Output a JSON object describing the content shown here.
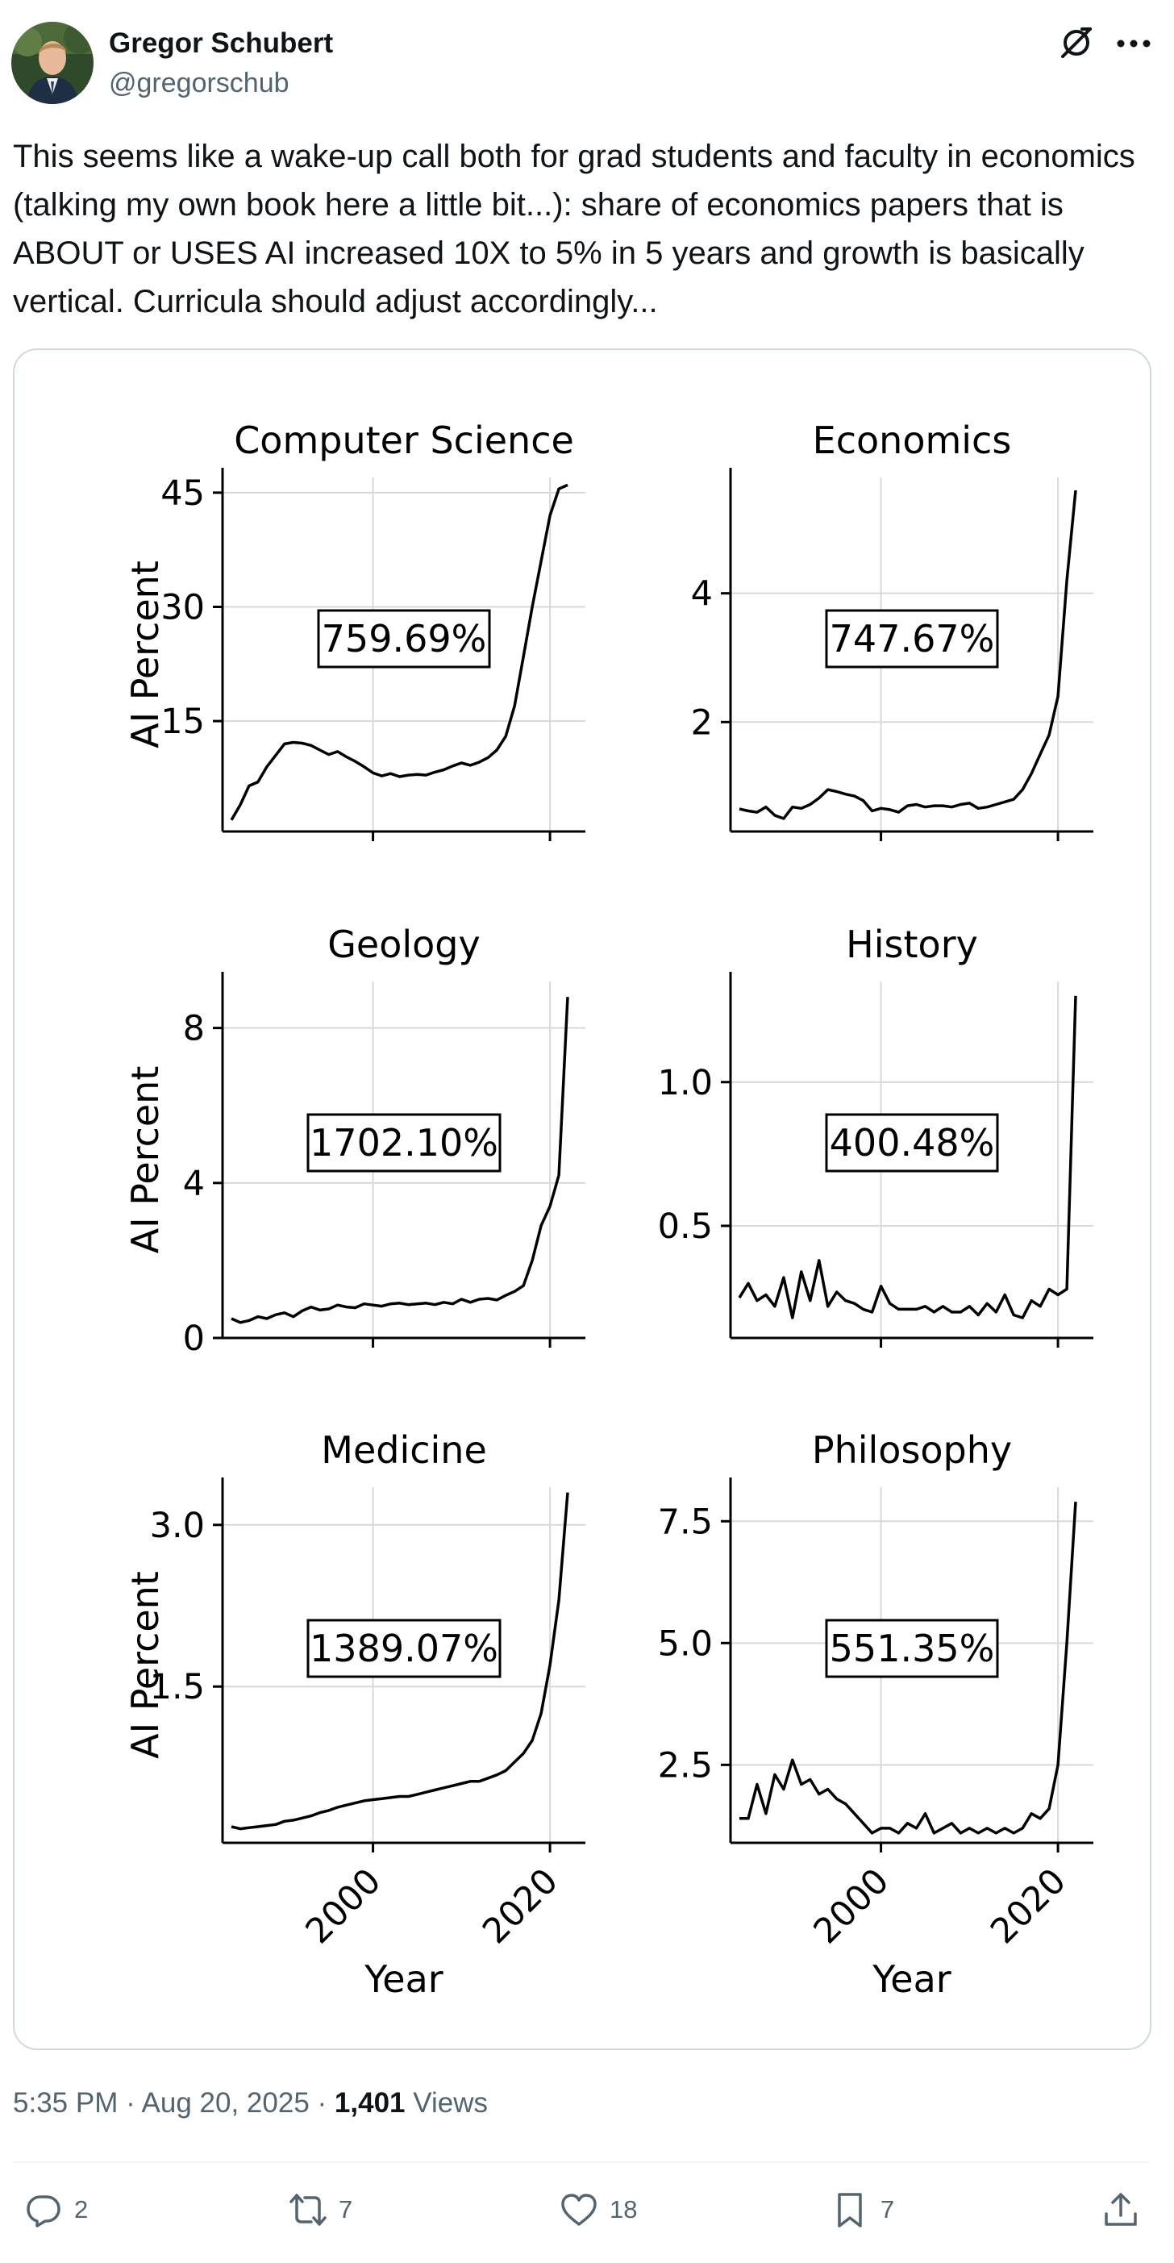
{
  "author": {
    "name": "Gregor Schubert",
    "handle": "@gregorschub"
  },
  "tweet": {
    "text": "This seems like a wake-up call both for grad students and faculty in economics (talking my own book here a little bit...): share of economics papers that is ABOUT or USES AI increased 10X to 5% in 5 years and growth is basically vertical. Curricula should adjust accordingly..."
  },
  "meta": {
    "time": "5:35 PM",
    "sep1": "·",
    "date": "Aug 20, 2025",
    "sep2": "·",
    "views_count": "1,401",
    "views_label": "Views"
  },
  "actions": {
    "replies": "2",
    "reposts": "7",
    "likes": "18",
    "bookmarks": "7"
  },
  "icons": [
    "avatar",
    "grok-icon",
    "more-icon",
    "reply-icon",
    "repost-icon",
    "like-icon",
    "bookmark-icon",
    "share-icon"
  ],
  "colors": {
    "text": "#0f1419",
    "secondary": "#536471",
    "border": "#cfd9de",
    "line": "#000000",
    "grid": "#d9d9d9"
  },
  "chart_data": [
    {
      "type": "line",
      "title": "Computer Science",
      "xlabel": "",
      "ylabel": "AI Percent",
      "xlim": [
        1983,
        2024
      ],
      "ylim": [
        0.5,
        47
      ],
      "xticks": [
        2000,
        2020
      ],
      "xtick_labels": [
        "",
        ""
      ],
      "yticks": [
        15,
        30,
        45
      ],
      "ytick_labels": [
        "15",
        "30",
        "45"
      ],
      "annotation": "759.69%",
      "grid": true,
      "x": [
        1984,
        1985,
        1986,
        1987,
        1988,
        1989,
        1990,
        1991,
        1992,
        1993,
        1994,
        1995,
        1996,
        1997,
        1998,
        1999,
        2000,
        2001,
        2002,
        2003,
        2004,
        2005,
        2006,
        2007,
        2008,
        2009,
        2010,
        2011,
        2012,
        2013,
        2014,
        2015,
        2016,
        2017,
        2018,
        2019,
        2020,
        2021,
        2022
      ],
      "y": [
        2,
        4,
        6.5,
        7,
        9,
        10.5,
        12,
        12.2,
        12.1,
        11.8,
        11.2,
        10.6,
        11,
        10.3,
        9.7,
        9,
        8.2,
        7.8,
        8.1,
        7.7,
        7.9,
        8,
        7.9,
        8.3,
        8.6,
        9.1,
        9.5,
        9.2,
        9.6,
        10.2,
        11.2,
        13,
        17,
        23.5,
        30,
        36,
        42,
        45.5,
        46
      ]
    },
    {
      "type": "line",
      "title": "Economics",
      "xlabel": "",
      "ylabel": "",
      "xlim": [
        1983,
        2024
      ],
      "ylim": [
        0.3,
        5.8
      ],
      "xticks": [
        2000,
        2020
      ],
      "xtick_labels": [
        "",
        ""
      ],
      "yticks": [
        2,
        4
      ],
      "ytick_labels": [
        "2",
        "4"
      ],
      "annotation": "747.67%",
      "grid": true,
      "x": [
        1984,
        1985,
        1986,
        1987,
        1988,
        1989,
        1990,
        1991,
        1992,
        1993,
        1994,
        1995,
        1996,
        1997,
        1998,
        1999,
        2000,
        2001,
        2002,
        2003,
        2004,
        2005,
        2006,
        2007,
        2008,
        2009,
        2010,
        2011,
        2012,
        2013,
        2014,
        2015,
        2016,
        2017,
        2018,
        2019,
        2020,
        2021,
        2022
      ],
      "y": [
        0.65,
        0.62,
        0.6,
        0.68,
        0.55,
        0.5,
        0.68,
        0.66,
        0.72,
        0.82,
        0.95,
        0.92,
        0.88,
        0.85,
        0.78,
        0.62,
        0.66,
        0.64,
        0.6,
        0.7,
        0.72,
        0.68,
        0.7,
        0.7,
        0.68,
        0.72,
        0.74,
        0.66,
        0.68,
        0.72,
        0.76,
        0.8,
        0.95,
        1.2,
        1.5,
        1.8,
        2.4,
        4.2,
        5.6
      ]
    },
    {
      "type": "line",
      "title": "Geology",
      "xlabel": "",
      "ylabel": "AI Percent",
      "xlim": [
        1983,
        2024
      ],
      "ylim": [
        0,
        9.2
      ],
      "xticks": [
        2000,
        2020
      ],
      "xtick_labels": [
        "",
        ""
      ],
      "yticks": [
        0,
        4,
        8
      ],
      "ytick_labels": [
        "0",
        "4",
        "8"
      ],
      "annotation": "1702.10%",
      "grid": true,
      "x": [
        1984,
        1985,
        1986,
        1987,
        1988,
        1989,
        1990,
        1991,
        1992,
        1993,
        1994,
        1995,
        1996,
        1997,
        1998,
        1999,
        2000,
        2001,
        2002,
        2003,
        2004,
        2005,
        2006,
        2007,
        2008,
        2009,
        2010,
        2011,
        2012,
        2013,
        2014,
        2015,
        2016,
        2017,
        2018,
        2019,
        2020,
        2021,
        2022
      ],
      "y": [
        0.5,
        0.4,
        0.45,
        0.55,
        0.5,
        0.6,
        0.65,
        0.55,
        0.7,
        0.8,
        0.72,
        0.75,
        0.85,
        0.8,
        0.78,
        0.88,
        0.85,
        0.82,
        0.88,
        0.9,
        0.86,
        0.88,
        0.9,
        0.86,
        0.92,
        0.88,
        1.0,
        0.92,
        1.0,
        1.02,
        0.98,
        1.1,
        1.2,
        1.35,
        2.0,
        2.9,
        3.4,
        4.2,
        8.8
      ]
    },
    {
      "type": "line",
      "title": "History",
      "xlabel": "",
      "ylabel": "",
      "xlim": [
        1983,
        2024
      ],
      "ylim": [
        0.11,
        1.35
      ],
      "xticks": [
        2000,
        2020
      ],
      "xtick_labels": [
        "",
        ""
      ],
      "yticks": [
        0.5,
        1.0
      ],
      "ytick_labels": [
        "0.5",
        "1.0"
      ],
      "annotation": "400.48%",
      "grid": true,
      "x": [
        1984,
        1985,
        1986,
        1987,
        1988,
        1989,
        1990,
        1991,
        1992,
        1993,
        1994,
        1995,
        1996,
        1997,
        1998,
        1999,
        2000,
        2001,
        2002,
        2003,
        2004,
        2005,
        2006,
        2007,
        2008,
        2009,
        2010,
        2011,
        2012,
        2013,
        2014,
        2015,
        2016,
        2017,
        2018,
        2019,
        2020,
        2021,
        2022
      ],
      "y": [
        0.25,
        0.3,
        0.24,
        0.26,
        0.22,
        0.32,
        0.18,
        0.34,
        0.24,
        0.38,
        0.22,
        0.27,
        0.24,
        0.23,
        0.21,
        0.2,
        0.29,
        0.23,
        0.21,
        0.21,
        0.21,
        0.22,
        0.2,
        0.22,
        0.2,
        0.2,
        0.22,
        0.19,
        0.23,
        0.2,
        0.26,
        0.19,
        0.18,
        0.24,
        0.22,
        0.28,
        0.26,
        0.28,
        1.3
      ]
    },
    {
      "type": "line",
      "title": "Medicine",
      "xlabel": "Year",
      "ylabel": "AI Percent",
      "xlim": [
        1983,
        2024
      ],
      "ylim": [
        0.05,
        3.35
      ],
      "xticks": [
        2000,
        2020
      ],
      "xtick_labels": [
        "2000",
        "2020"
      ],
      "yticks": [
        1.5,
        3.0
      ],
      "ytick_labels": [
        "1.5",
        "3.0"
      ],
      "annotation": "1389.07%",
      "grid": true,
      "x": [
        1984,
        1985,
        1986,
        1987,
        1988,
        1989,
        1990,
        1991,
        1992,
        1993,
        1994,
        1995,
        1996,
        1997,
        1998,
        1999,
        2000,
        2001,
        2002,
        2003,
        2004,
        2005,
        2006,
        2007,
        2008,
        2009,
        2010,
        2011,
        2012,
        2013,
        2014,
        2015,
        2016,
        2017,
        2018,
        2019,
        2020,
        2021,
        2022
      ],
      "y": [
        0.2,
        0.18,
        0.19,
        0.2,
        0.21,
        0.22,
        0.25,
        0.26,
        0.28,
        0.3,
        0.33,
        0.35,
        0.38,
        0.4,
        0.42,
        0.44,
        0.45,
        0.46,
        0.47,
        0.48,
        0.48,
        0.5,
        0.52,
        0.54,
        0.56,
        0.58,
        0.6,
        0.62,
        0.62,
        0.65,
        0.68,
        0.72,
        0.8,
        0.88,
        1.0,
        1.25,
        1.7,
        2.3,
        3.3
      ]
    },
    {
      "type": "line",
      "title": "Philosophy",
      "xlabel": "Year",
      "ylabel": "",
      "xlim": [
        1983,
        2024
      ],
      "ylim": [
        0.9,
        8.2
      ],
      "xticks": [
        2000,
        2020
      ],
      "xtick_labels": [
        "2000",
        "2020"
      ],
      "yticks": [
        2.5,
        5.0,
        7.5
      ],
      "ytick_labels": [
        "2.5",
        "5.0",
        "7.5"
      ],
      "annotation": "551.35%",
      "grid": true,
      "x": [
        1984,
        1985,
        1986,
        1987,
        1988,
        1989,
        1990,
        1991,
        1992,
        1993,
        1994,
        1995,
        1996,
        1997,
        1998,
        1999,
        2000,
        2001,
        2002,
        2003,
        2004,
        2005,
        2006,
        2007,
        2008,
        2009,
        2010,
        2011,
        2012,
        2013,
        2014,
        2015,
        2016,
        2017,
        2018,
        2019,
        2020,
        2021,
        2022
      ],
      "y": [
        1.4,
        1.4,
        2.1,
        1.5,
        2.3,
        2.0,
        2.6,
        2.1,
        2.2,
        1.9,
        2.0,
        1.8,
        1.7,
        1.5,
        1.3,
        1.1,
        1.2,
        1.2,
        1.1,
        1.3,
        1.2,
        1.5,
        1.1,
        1.2,
        1.3,
        1.1,
        1.2,
        1.1,
        1.2,
        1.1,
        1.2,
        1.1,
        1.2,
        1.5,
        1.4,
        1.6,
        2.5,
        5.0,
        7.9
      ]
    }
  ]
}
